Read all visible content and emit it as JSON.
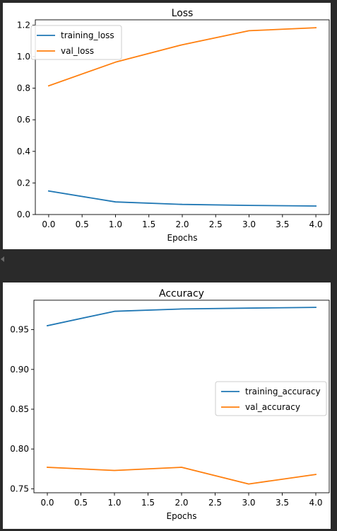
{
  "chart_data": [
    {
      "type": "line",
      "title": "Loss",
      "xlabel": "Epochs",
      "ylabel": "",
      "x": [
        0,
        1,
        2,
        3,
        4
      ],
      "xlim": [
        -0.2,
        4.2
      ],
      "ylim": [
        0.0,
        1.233
      ],
      "xticks": [
        "0.0",
        "0.5",
        "1.0",
        "1.5",
        "2.0",
        "2.5",
        "3.0",
        "3.5",
        "4.0"
      ],
      "yticks": [
        "0.0",
        "0.2",
        "0.4",
        "0.6",
        "0.8",
        "1.0",
        "1.2"
      ],
      "legend_position": "top-left",
      "grid": false,
      "series": [
        {
          "name": "training_loss",
          "color": "#1f77b4",
          "values": [
            0.149,
            0.08,
            0.064,
            0.058,
            0.054
          ]
        },
        {
          "name": "val_loss",
          "color": "#ff7f0e",
          "values": [
            0.815,
            0.965,
            1.075,
            1.164,
            1.183
          ]
        }
      ]
    },
    {
      "type": "line",
      "title": "Accuracy",
      "xlabel": "Epochs",
      "ylabel": "",
      "x": [
        0,
        1,
        2,
        3,
        4
      ],
      "xlim": [
        -0.2,
        4.2
      ],
      "ylim": [
        0.745,
        0.987
      ],
      "xticks": [
        "0.0",
        "0.5",
        "1.0",
        "1.5",
        "2.0",
        "2.5",
        "3.0",
        "3.5",
        "4.0"
      ],
      "yticks": [
        "0.75",
        "0.80",
        "0.85",
        "0.90",
        "0.95"
      ],
      "legend_position": "center-right",
      "grid": false,
      "series": [
        {
          "name": "training_accuracy",
          "color": "#1f77b4",
          "values": [
            0.955,
            0.973,
            0.976,
            0.977,
            0.978
          ]
        },
        {
          "name": "val_accuracy",
          "color": "#ff7f0e",
          "values": [
            0.777,
            0.773,
            0.777,
            0.756,
            0.768
          ]
        }
      ]
    }
  ]
}
